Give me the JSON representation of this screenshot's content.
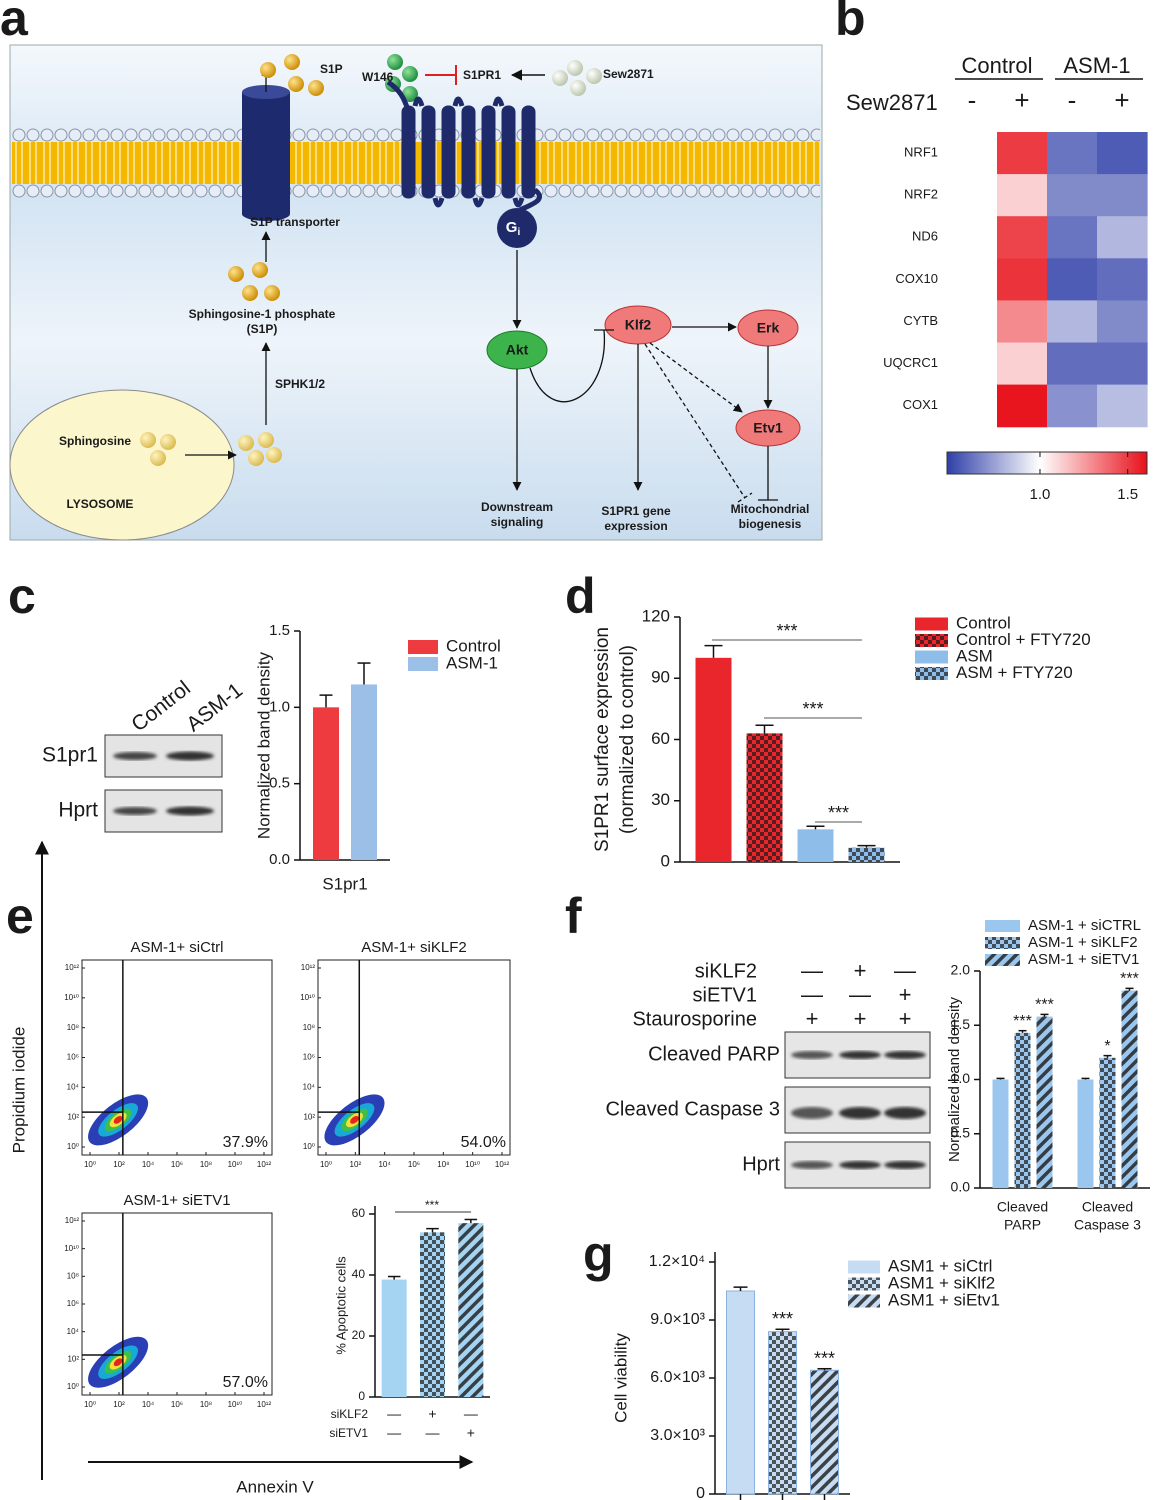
{
  "panel_labels": [
    "a",
    "b",
    "c",
    "d",
    "e",
    "f",
    "g"
  ],
  "diagram": {
    "s1p": "S1P",
    "w146": "W146",
    "s1pr1": "S1PR1",
    "sew2871": "Sew2871",
    "transporter": "S1P transporter",
    "gi": "G",
    "gi_sub": "i",
    "s1p_name": [
      "Sphingosine-1 phosphate",
      "(S1P)"
    ],
    "sphk": "SPHK1/2",
    "sphingosine": "Sphingosine",
    "lysosome": "LYSOSOME",
    "akt": "Akt",
    "klf2": "Klf2",
    "erk": "Erk",
    "etv1": "Etv1",
    "downstream": [
      "Downstream",
      "signaling"
    ],
    "gene": [
      "S1PR1 gene",
      "expression"
    ],
    "mito": [
      "Mitochondrial",
      "biogenesis"
    ]
  },
  "blots": {
    "c": {
      "lanes": [
        "Control",
        "ASM-1"
      ],
      "bands": [
        "S1pr1",
        "Hprt"
      ]
    },
    "f": {
      "conditions": [
        {
          "label": "siKLF2",
          "signs": [
            "—",
            "+",
            "—"
          ]
        },
        {
          "label": "siETV1",
          "signs": [
            "—",
            "—",
            "+"
          ]
        },
        {
          "label": "Staurosporine",
          "signs": [
            "+",
            "+",
            "+"
          ]
        }
      ],
      "bands": [
        "Cleaved PARP",
        "Cleaved Caspase 3",
        "Hprt"
      ]
    }
  },
  "chart_data": [
    {
      "type": "heatmap",
      "column_groups": [
        "Control",
        "ASM-1"
      ],
      "row_title": "Sew2871",
      "columns": [
        "-",
        "+",
        "-",
        "+"
      ],
      "rows": [
        "NRF1",
        "NRF2",
        "ND6",
        "COX10",
        "CYTB",
        "UQCRC1",
        "COX1"
      ],
      "values": [
        [
          1,
          1.5,
          0.62,
          0.55
        ],
        [
          1,
          1.12,
          0.68,
          0.68
        ],
        [
          1,
          1.48,
          0.62,
          0.8
        ],
        [
          1,
          1.52,
          0.55,
          0.6
        ],
        [
          1,
          1.3,
          0.8,
          0.68
        ],
        [
          1,
          1.12,
          0.6,
          0.6
        ],
        [
          1,
          1.6,
          0.7,
          0.82
        ]
      ],
      "clim": [
        0.47,
        1.61
      ],
      "midpoint": 1,
      "colors": [
        "#2f3fa8",
        "#ffffff",
        "#e8101a"
      ],
      "cticks": [
        {
          "value": 1,
          "label": "1.0"
        },
        1.5
      ]
    },
    {
      "type": "bar",
      "ylabel": "Normalized band density",
      "xlabel": "S1pr1",
      "series": [
        {
          "name": "Control",
          "color": "#ee3b3f",
          "values": [
            1.0
          ],
          "errors": [
            0.08
          ]
        },
        {
          "name": "ASM-1",
          "color": "#9bbfe6",
          "values": [
            1.15
          ],
          "errors": [
            0.14
          ]
        }
      ],
      "ylim": [
        0,
        1.5
      ],
      "yticks": [
        {
          "value": 0,
          "label": "0.0"
        },
        0.5,
        {
          "value": 1,
          "label": "1.0"
        },
        1.5
      ]
    },
    {
      "type": "bar",
      "ylabel": [
        "S1PR1 surface expression",
        "(normalized to control)"
      ],
      "series": [
        {
          "name": "Control",
          "color": "#e8262b",
          "pattern": "solid",
          "values": [
            100
          ],
          "errors": [
            6
          ]
        },
        {
          "name": "Control + FTY720",
          "color": "#e8262b",
          "pattern": "checker",
          "values": [
            63
          ],
          "errors": [
            4
          ]
        },
        {
          "name": "ASM",
          "color": "#8fbde9",
          "pattern": "solid",
          "values": [
            16
          ],
          "errors": [
            1.5
          ]
        },
        {
          "name": "ASM + FTY720",
          "color": "#8fbde9",
          "pattern": "checker",
          "values": [
            7
          ],
          "errors": [
            1
          ]
        }
      ],
      "ylim": [
        0,
        120
      ],
      "yticks": [
        0,
        30,
        60,
        90,
        120
      ],
      "annotations": [
        "***",
        "***",
        "***"
      ]
    },
    {
      "type": "bar",
      "ylabel": "% Apoptotic cells",
      "color": "#a5d4f2",
      "patterns": [
        "solid",
        "checker",
        "stripes"
      ],
      "values": [
        38.5,
        54,
        57
      ],
      "errors": [
        1,
        1.2,
        1.2
      ],
      "conditions": [
        {
          "label": "siKLF2",
          "signs": [
            "—",
            "+",
            "—"
          ]
        },
        {
          "label": "siETV1",
          "signs": [
            "—",
            "—",
            "+"
          ]
        }
      ],
      "ylim": [
        0,
        60
      ],
      "yticks": [
        0,
        20,
        40,
        60
      ],
      "annotations": [
        "***"
      ]
    },
    {
      "type": "bar",
      "ylabel": "Normalized band density",
      "categories": [
        [
          "Cleaved",
          "PARP"
        ],
        [
          "Cleaved",
          "Caspase 3"
        ]
      ],
      "series": [
        {
          "name": "ASM-1 + siCTRL",
          "color": "#9bc7ee",
          "pattern": "solid",
          "values": [
            1.0,
            1.0
          ],
          "errors": [
            0.01,
            0.01
          ],
          "significance": [
            null,
            null
          ]
        },
        {
          "name": "ASM-1 + siKLF2",
          "color": "#9bc7ee",
          "pattern": "checker",
          "values": [
            1.43,
            1.2
          ],
          "errors": [
            0.02,
            0.02
          ],
          "significance": [
            "***",
            "*"
          ]
        },
        {
          "name": "ASM-1 + siETV1",
          "color": "#9bc7ee",
          "pattern": "stripes",
          "values": [
            1.58,
            1.82
          ],
          "errors": [
            0.02,
            0.02
          ],
          "significance": [
            "***",
            "***"
          ]
        }
      ],
      "ylim": [
        0,
        2
      ],
      "yticks": [
        {
          "value": 0,
          "label": "0.0"
        },
        0.5,
        {
          "value": 1,
          "label": "1.0"
        },
        1.5,
        {
          "value": 2,
          "label": "2.0"
        }
      ]
    },
    {
      "type": "bar",
      "ylabel": "Cell viability",
      "series": [
        {
          "name": "ASM1 + siCtrl",
          "color": "#c5dcf3",
          "pattern": "solid",
          "values": [
            10500
          ],
          "errors": [
            200
          ],
          "significance": [
            null
          ]
        },
        {
          "name": "ASM1 + siKlf2",
          "color": "#c5dcf3",
          "pattern": "checker",
          "values": [
            8400
          ],
          "errors": [
            120
          ],
          "significance": [
            "***"
          ]
        },
        {
          "name": "ASM1 + siEtv1",
          "color": "#c5dcf3",
          "pattern": "stripes",
          "values": [
            6400
          ],
          "errors": [
            80
          ],
          "significance": [
            "***"
          ]
        }
      ],
      "ylim": [
        0,
        12000
      ],
      "yticks": [
        0,
        {
          "value": 3000,
          "label": "3.0×10³"
        },
        {
          "value": 6000,
          "label": "6.0×10³"
        },
        {
          "value": 9000,
          "label": "9.0×10³"
        },
        {
          "value": 12000,
          "label": "1.2×10⁴"
        }
      ]
    },
    {
      "type": "flow",
      "xlabel": "Annexin V",
      "ylabel": "Propidium iodide",
      "log_scale": true,
      "lim": [
        1,
        1000000000000
      ],
      "ticks": [
        {
          "value": 1,
          "label": "10⁰"
        },
        {
          "value": 100,
          "label": "10²"
        },
        {
          "value": 10000,
          "label": "10⁴"
        },
        {
          "value": 1000000,
          "label": "10⁶"
        },
        {
          "value": 100000000,
          "label": "10⁸"
        },
        {
          "value": 10000000000,
          "label": "10¹⁰"
        },
        {
          "value": 1000000000000,
          "label": "10¹²"
        }
      ],
      "titles": [
        "ASM-1+ siCtrl",
        "ASM-1+ siKLF2",
        "ASM-1+ siETV1"
      ],
      "values": [
        37.9,
        54.0,
        57.0
      ],
      "value_labels": [
        "37.9%",
        "54.0%",
        "57.0%"
      ]
    }
  ]
}
